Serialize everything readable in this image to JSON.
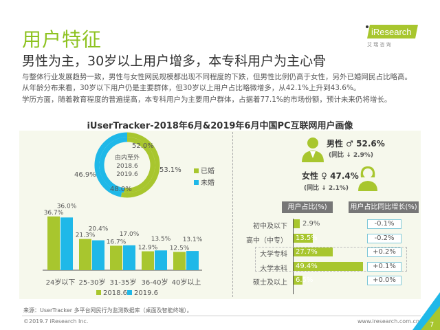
{
  "header": {
    "title": "用户特征",
    "subtitle": "男性为主，30岁以上用户增多，本专科用户为主心骨",
    "logo_text": "iResearch",
    "logo_sub": "艾 瑞 咨 询"
  },
  "body": [
    "与整体行业发展趋势一致，男性与女性网民规模都出现不同程度的下跌，但男性比例仍高于女性，另外已婚网民占比略高。",
    "从年龄分布来看，30岁以下用户仍是主要群体，但30岁以上用户占比略微增多，从42.1%上升到43.6%。",
    "学历方面，随着教育程度的普遍提高，本专科用户为主要用户群体，占据着77.1%的市场份额，预计未来仍将增长。"
  ],
  "chart_title": "iUserTracker-2018年6月&2019年6月中国PC互联网用户画像",
  "colors": {
    "green": "#a8c62e",
    "blue": "#1fb8e8",
    "title_green": "#8dc21f"
  },
  "chart_data": [
    {
      "type": "pie",
      "center_label": [
        "由内至外",
        "2018.6",
        "2019.6"
      ],
      "legend": [
        "已婚",
        "未婚"
      ],
      "rings": [
        {
          "name": "2018.6",
          "values": [
            52.0,
            48.0
          ]
        },
        {
          "name": "2019.6",
          "values": [
            53.1,
            46.9
          ]
        }
      ],
      "labels": {
        "inner_married": "52.0%",
        "outer_married": "53.1%",
        "inner_single": "48.0%",
        "outer_single": "46.9%"
      }
    },
    {
      "type": "bar",
      "categories": [
        "24岁以下",
        "25-30岁",
        "31-35岁",
        "36-40岁",
        "40岁以上"
      ],
      "series": [
        {
          "name": "2018.6",
          "values": [
            36.7,
            21.3,
            16.7,
            12.9,
            12.5
          ]
        },
        {
          "name": "2019.6",
          "values": [
            36.0,
            20.4,
            17.0,
            13.5,
            13.1
          ]
        }
      ]
    },
    {
      "type": "bar",
      "orientation": "horizontal",
      "header": "用户占比(%)",
      "change_header": "用户占比同比增长(%)",
      "categories": [
        "初中及以下",
        "高中（中专）",
        "大学专科",
        "大学本科",
        "硕士及以上"
      ],
      "values": [
        2.9,
        13.5,
        27.7,
        49.4,
        6.5
      ],
      "changes": [
        "-0.1%",
        "-0.2%",
        "+0.2%",
        "+0.1%",
        "+0.0%"
      ]
    }
  ],
  "gender": {
    "male": "男性 ♂ 52.6%",
    "male_change": "(同比 ↓ 2.9%)",
    "female": "女性 ♀ 47.4%",
    "female_change": "(同比 ↓ 2.1%)"
  },
  "footer": {
    "source": "来源：UserTracker 多平台网民行为监测数据库（桌面及智能终端）。",
    "copyright": "©2019.7 iResearch Inc.",
    "url": "www.iresearch.com.cn",
    "page": "7"
  }
}
